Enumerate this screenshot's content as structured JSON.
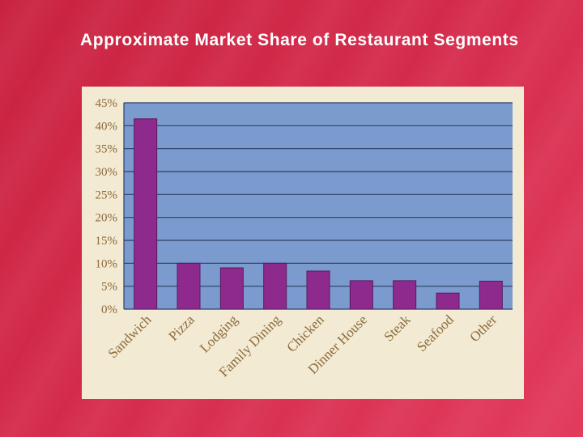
{
  "slide": {
    "title": "Approximate Market Share of Restaurant Segments"
  },
  "colors": {
    "plot_background": "#7b9bcf",
    "bar": "#8e2a8e",
    "bar_edge": "#5a1a5a",
    "gridline": "#2c3f66",
    "tick_text": "#8b6b3a",
    "panel": "#f3ead3"
  },
  "chart_data": {
    "type": "bar",
    "title": "",
    "xlabel": "",
    "ylabel": "",
    "ylim": [
      0,
      45
    ],
    "yticks": [
      0,
      5,
      10,
      15,
      20,
      25,
      30,
      35,
      40,
      45
    ],
    "ytick_labels": [
      "0%",
      "5%",
      "10%",
      "15%",
      "20%",
      "25%",
      "30%",
      "35%",
      "40%",
      "45%"
    ],
    "grid": true,
    "categories": [
      "Sandwich",
      "Pizza",
      "Lodging",
      "Family Dining",
      "Chicken",
      "Dinner House",
      "Steak",
      "Seafood",
      "Other"
    ],
    "values": [
      41.5,
      10,
      9,
      10,
      8.3,
      6.2,
      6.2,
      3.5,
      6.1
    ]
  }
}
